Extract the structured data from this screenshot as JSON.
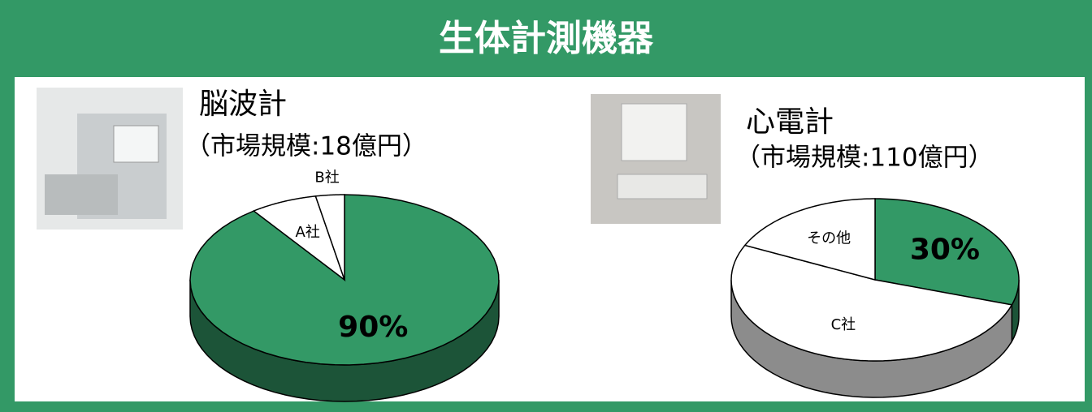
{
  "title": "生体計測機器",
  "chart_data": [
    {
      "type": "pie",
      "title": "脳波計",
      "subtitle": "（市場規模:18億円）",
      "categories": [
        null,
        "A社",
        "B社"
      ],
      "values": [
        90,
        7,
        3
      ],
      "value_labels": [
        "90%",
        null,
        null
      ],
      "colors": [
        "#339966",
        "#ffffff",
        "#ffffff"
      ]
    },
    {
      "type": "pie",
      "title": "心電計",
      "subtitle": "（市場規模:110億円）",
      "categories": [
        null,
        "C社",
        "その他"
      ],
      "values": [
        30,
        52,
        18
      ],
      "value_labels": [
        "30%",
        null,
        null
      ],
      "colors": [
        "#339966",
        "#ffffff",
        "#ffffff"
      ]
    }
  ]
}
